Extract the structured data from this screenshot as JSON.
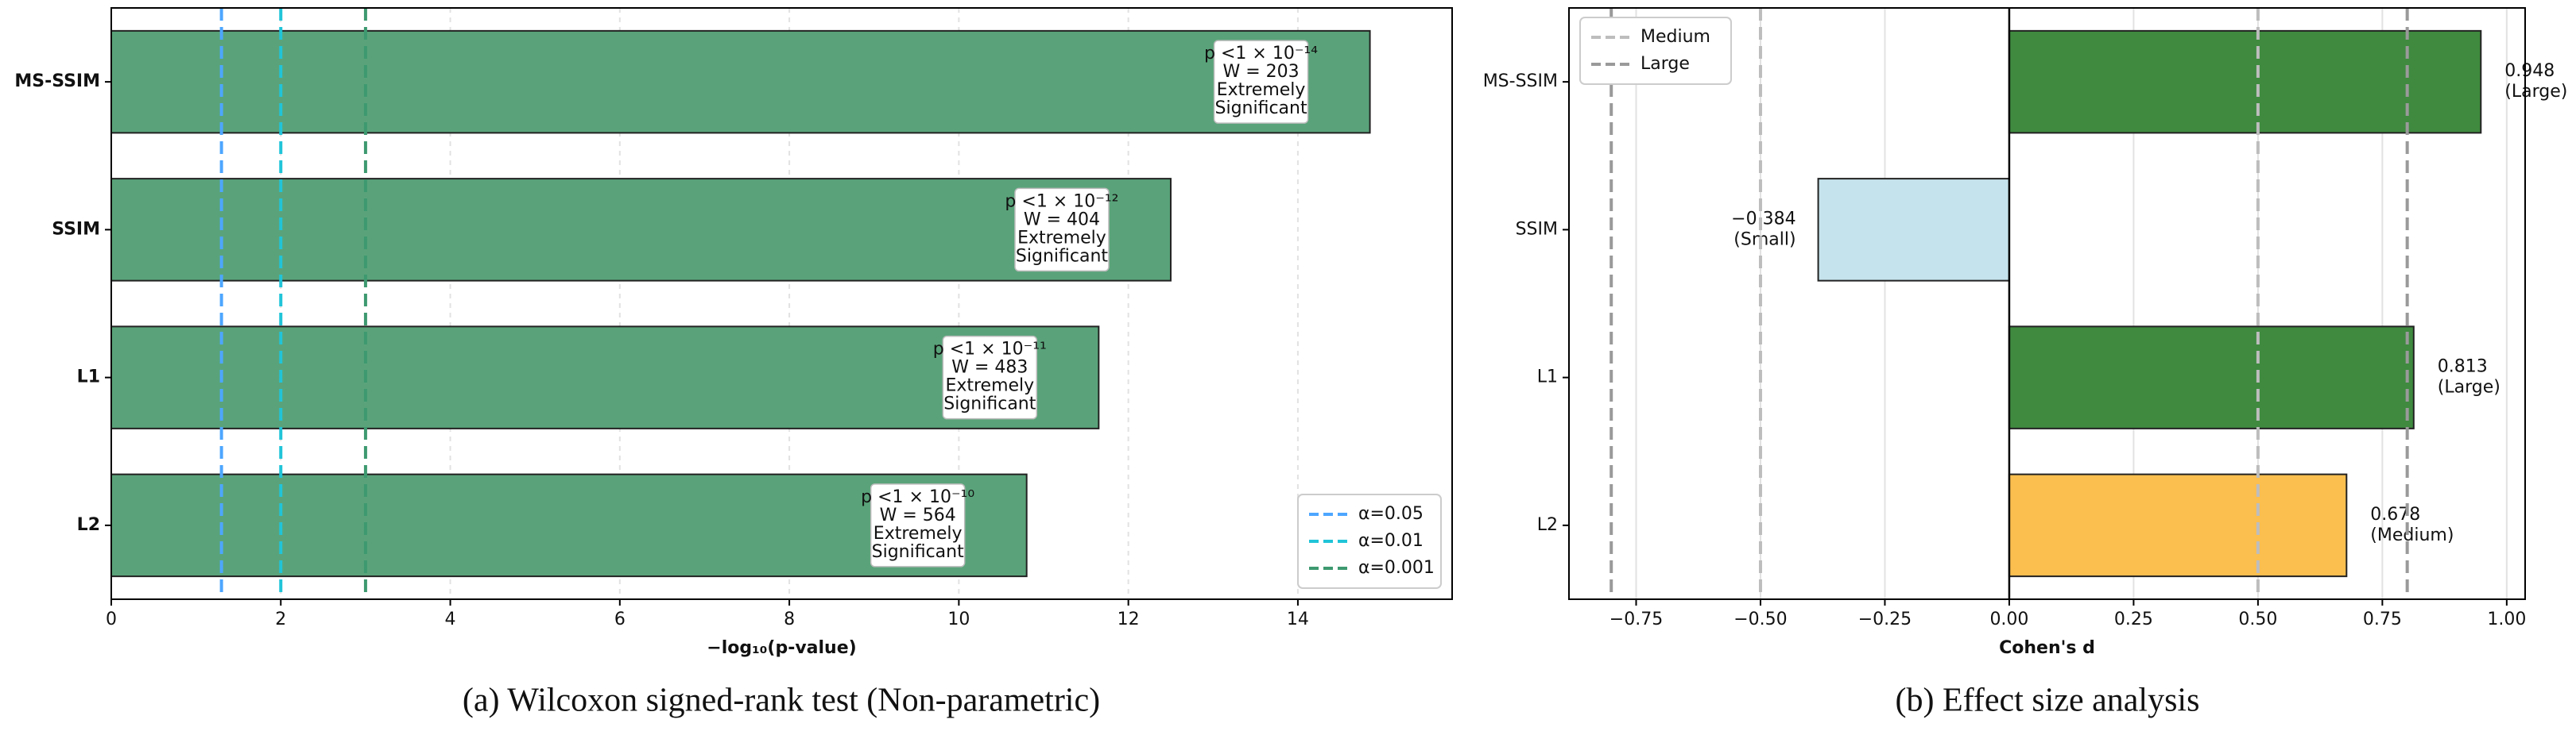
{
  "chart_data": [
    {
      "type": "barh",
      "caption": "(a) Wilcoxon signed-rank test (Non-parametric)",
      "xlabel": "−log₁₀(p-value)",
      "categories": [
        "MS-SSIM",
        "SSIM",
        "L1",
        "L2"
      ],
      "values": [
        14.85,
        12.5,
        11.65,
        10.8
      ],
      "colors": [
        "#5aa37a",
        "#5aa37a",
        "#5aa37a",
        "#5aa37a"
      ],
      "annotations": [
        [
          "p <1 × 10⁻¹⁴",
          "W = 203",
          "Extremely",
          "Significant"
        ],
        [
          "p <1 × 10⁻¹²",
          "W = 404",
          "Extremely",
          "Significant"
        ],
        [
          "p <1 × 10⁻¹¹",
          "W = 483",
          "Extremely",
          "Significant"
        ],
        [
          "p <1 × 10⁻¹⁰",
          "W = 564",
          "Extremely",
          "Significant"
        ]
      ],
      "xlim": [
        0,
        15.82
      ],
      "xticks": [
        0,
        2,
        4,
        6,
        8,
        10,
        12,
        14
      ],
      "grid": true,
      "bold_categories": true,
      "ref_lines": [
        {
          "name": "α=0.05",
          "values": [
            1.3
          ],
          "color": "#4da6ff"
        },
        {
          "name": "α=0.01",
          "values": [
            2
          ],
          "color": "#20c4d8"
        },
        {
          "name": "α=0.001",
          "values": [
            3
          ],
          "color": "#3d9970"
        }
      ],
      "legend": "lower right"
    },
    {
      "type": "barh",
      "caption": "(b) Effect size analysis",
      "xlabel": "Cohen's d",
      "categories": [
        "MS-SSIM",
        "SSIM",
        "L1",
        "L2"
      ],
      "values": [
        0.948,
        -0.384,
        0.813,
        0.678
      ],
      "value_labels": [
        "0.948",
        "−0.384",
        "0.813",
        "0.678"
      ],
      "effect_labels": [
        "(Large)",
        "(Small)",
        "(Large)",
        "(Medium)"
      ],
      "colors": [
        "#3f8a3f",
        "#c5e3ec",
        "#3f8a3f",
        "#fbbf4f"
      ],
      "xlim": [
        -0.885,
        1.037
      ],
      "xticks": [
        {
          "value": -0.75,
          "label": "−0.75"
        },
        {
          "value": -0.5,
          "label": "−0.50"
        },
        {
          "value": -0.25,
          "label": "−0.25"
        },
        {
          "value": 0,
          "label": "0.00"
        },
        0.25,
        {
          "value": 0.5,
          "label": "0.50"
        },
        0.75,
        {
          "value": 1,
          "label": "1.00"
        }
      ],
      "grid": true,
      "bold_categories": false,
      "ref_lines": [
        {
          "name": "Medium",
          "values": [
            -0.5,
            0.5
          ],
          "color": "#bdbdbd"
        },
        {
          "name": "Large",
          "values": [
            -0.8,
            0.8
          ],
          "color": "#9a9a9a"
        }
      ],
      "legend": "upper left"
    }
  ]
}
